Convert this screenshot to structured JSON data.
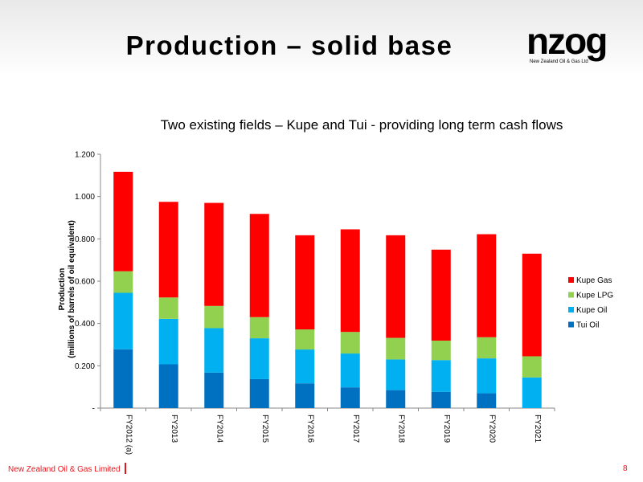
{
  "slide": {
    "title": "Production – solid base",
    "subtitle": "Two existing fields – Kupe and Tui - providing long term cash flows",
    "logo_text": "nzog",
    "logo_subtext": "New Zealand Oil & Gas Ltd",
    "footer_company": "New Zealand Oil & Gas Limited",
    "page_number": "8"
  },
  "chart_data": {
    "type": "bar",
    "stacked": true,
    "categories": [
      "FY2012 (a)",
      "FY2013",
      "FY2014",
      "FY2015",
      "FY2016",
      "FY2017",
      "FY2018",
      "FY2019",
      "FY2020",
      "FY2021"
    ],
    "series": [
      {
        "name": "Tui Oil",
        "color": "#0070c0",
        "values": [
          0.278,
          0.207,
          0.168,
          0.137,
          0.117,
          0.098,
          0.085,
          0.077,
          0.07,
          0.0
        ]
      },
      {
        "name": "Kupe Oil",
        "color": "#00b0f0",
        "values": [
          0.267,
          0.215,
          0.21,
          0.193,
          0.16,
          0.16,
          0.145,
          0.15,
          0.165,
          0.145
        ]
      },
      {
        "name": "Kupe LPG",
        "color": "#92d050",
        "values": [
          0.102,
          0.101,
          0.105,
          0.1,
          0.095,
          0.102,
          0.102,
          0.092,
          0.1,
          0.1
        ]
      },
      {
        "name": "Kupe Gas",
        "color": "#ff0000",
        "values": [
          0.47,
          0.452,
          0.487,
          0.488,
          0.445,
          0.485,
          0.485,
          0.43,
          0.487,
          0.485
        ]
      }
    ],
    "ylabel": [
      "Production",
      "(millions of barrels of oil equivalent)"
    ],
    "ylim": [
      0,
      1.2
    ],
    "yticks": [
      "-",
      "0.200",
      "0.400",
      "0.600",
      "0.800",
      "1.000",
      "1.200"
    ],
    "grid": false,
    "legend_position": "right"
  }
}
